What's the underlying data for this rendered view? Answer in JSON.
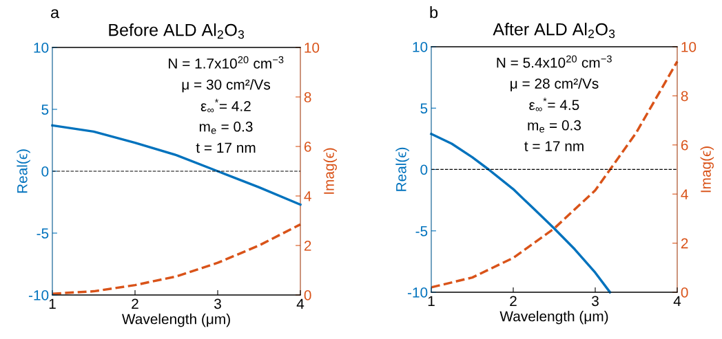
{
  "chart_data": [
    {
      "type": "line",
      "title": "Before ALD Al$_{2}$O$_{3}$",
      "xlabel": "Wavelength (μm)",
      "ylabel": "Real(ϵ)",
      "y2label": "Imag(ϵ)",
      "annotations": [
        "a",
        "N = 1.7x10$^{20}$ cm$^{−3}$",
        "μ = 30 cm²/Vs",
        "ε$_{∞}$$^{*}$= 4.2",
        "m$_{e}$ = 0.3",
        "t = 17 nm"
      ],
      "x": [
        1,
        1.5,
        2,
        2.5,
        3,
        3.5,
        4
      ],
      "series": [
        {
          "color": "#0072bd",
          "values": [
            3.7,
            3.2,
            2.3,
            1.3,
            0.0,
            -1.3,
            -2.7
          ],
          "line_style": "solid"
        },
        {
          "color": "#d95319",
          "values": [
            0.05,
            0.15,
            0.4,
            0.75,
            1.3,
            2.0,
            2.85
          ],
          "axis": "y2",
          "line_style": "dashed"
        }
      ],
      "xlim": [
        1,
        4
      ],
      "xticks": [
        1,
        2,
        3,
        4
      ],
      "ylim": [
        -10,
        10
      ],
      "yticks": [
        -10,
        -5,
        0,
        5,
        10
      ],
      "y2lim": [
        0,
        10
      ],
      "y2ticks": [
        0,
        2,
        4,
        6,
        8,
        10
      ],
      "ref_lines": [
        {
          "axis": "y",
          "value": 0,
          "color": "#000000",
          "line_style": "dashed"
        }
      ],
      "grid": false,
      "legend": false
    },
    {
      "type": "line",
      "title": "After ALD Al$_{2}$O$_{3}$",
      "xlabel": "Wavelength (μm)",
      "ylabel": "Real(ϵ)",
      "y2label": "Imag(ϵ)",
      "annotations": [
        "b",
        "N = 5.4x10$^{20}$ cm$^{−3}$",
        "μ = 28 cm²/Vs",
        "ε$_{∞}$$^{*}$= 4.5",
        "m$_{e}$ = 0.3",
        "t = 17 nm"
      ],
      "series": [
        {
          "color": "#0072bd",
          "x": [
            1,
            1.25,
            1.5,
            1.7,
            2,
            2.25,
            2.5,
            2.75,
            3,
            3.18
          ],
          "values": [
            2.9,
            2.1,
            1.0,
            0.0,
            -1.6,
            -3.2,
            -4.8,
            -6.5,
            -8.4,
            -10
          ],
          "line_style": "solid"
        },
        {
          "color": "#d95319",
          "x": [
            1,
            1.5,
            2,
            2.5,
            3,
            3.5,
            4
          ],
          "values": [
            0.2,
            0.6,
            1.4,
            2.6,
            4.15,
            6.5,
            9.4
          ],
          "axis": "y2",
          "line_style": "dashed"
        }
      ],
      "xlim": [
        1,
        4
      ],
      "xticks": [
        1,
        2,
        3,
        4
      ],
      "ylim": [
        -10,
        10
      ],
      "yticks": [
        -10,
        -5,
        0,
        5,
        10
      ],
      "y2lim": [
        0,
        10
      ],
      "y2ticks": [
        0,
        2,
        4,
        6,
        8,
        10
      ],
      "ref_lines": [
        {
          "axis": "y",
          "value": 0,
          "color": "#000000",
          "line_style": "dashed"
        }
      ],
      "grid": false,
      "legend": false
    }
  ]
}
